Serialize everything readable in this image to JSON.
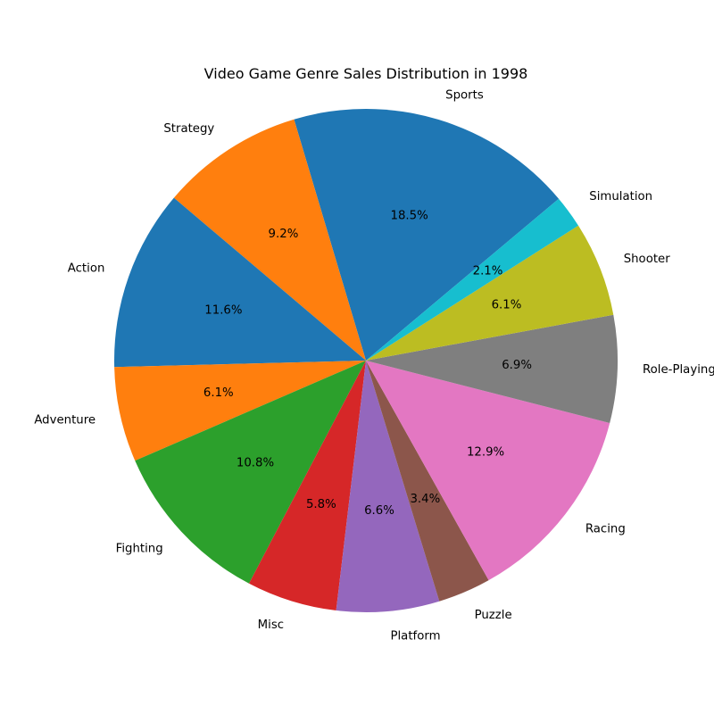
{
  "chart_data": {
    "type": "pie",
    "title": "Video Game Genre Sales Distribution in 1998",
    "start_angle_deg": 40,
    "direction": "counterclockwise",
    "slices": [
      {
        "label": "Sports",
        "value": 18.5,
        "pct_label": "18.5%",
        "color": "#1f77b4"
      },
      {
        "label": "Strategy",
        "value": 9.2,
        "pct_label": "9.2%",
        "color": "#ff7f0e"
      },
      {
        "label": "Action",
        "value": 11.6,
        "pct_label": "11.6%",
        "color": "#1f77b4"
      },
      {
        "label": "Adventure",
        "value": 6.1,
        "pct_label": "6.1%",
        "color": "#ff7f0e"
      },
      {
        "label": "Fighting",
        "value": 10.8,
        "pct_label": "10.8%",
        "color": "#2ca02c"
      },
      {
        "label": "Misc",
        "value": 5.8,
        "pct_label": "5.8%",
        "color": "#d62728"
      },
      {
        "label": "Platform",
        "value": 6.6,
        "pct_label": "6.6%",
        "color": "#9467bd"
      },
      {
        "label": "Puzzle",
        "value": 3.4,
        "pct_label": "3.4%",
        "color": "#8c564b"
      },
      {
        "label": "Racing",
        "value": 12.9,
        "pct_label": "12.9%",
        "color": "#e377c2"
      },
      {
        "label": "Role-Playing",
        "value": 6.9,
        "pct_label": "6.9%",
        "color": "#7f7f7f"
      },
      {
        "label": "Shooter",
        "value": 6.1,
        "pct_label": "6.1%",
        "color": "#bcbd22"
      },
      {
        "label": "Simulation",
        "value": 2.1,
        "pct_label": "2.1%",
        "color": "#17becf"
      }
    ]
  }
}
